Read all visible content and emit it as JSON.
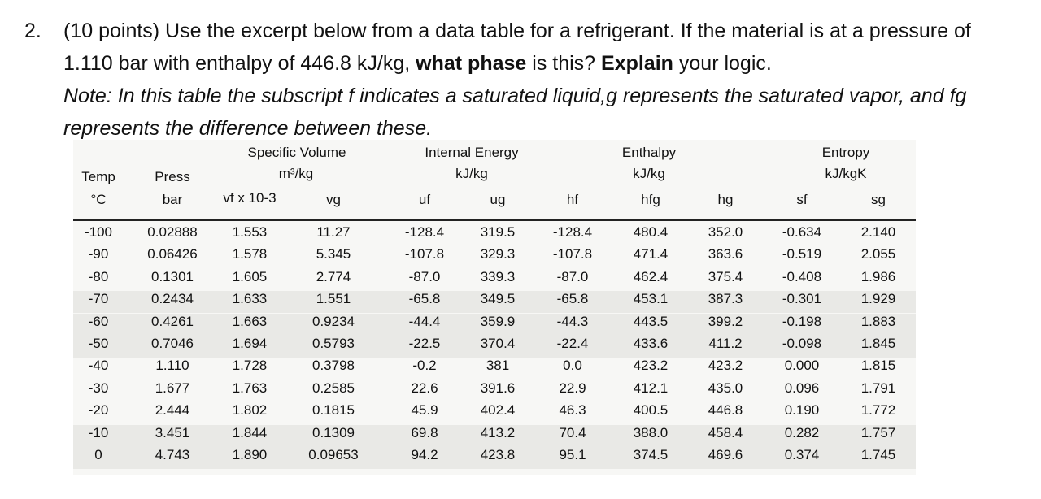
{
  "question": {
    "number": "2.",
    "points": "(10 points) Use the excerpt below from a data table for a refrigerant.  If the material is at a pressure of 1.110 bar with enthalpy of 446.8 kJ/kg, ",
    "bold1": "what phase",
    "mid": " is this? ",
    "bold2": "Explain",
    "end": " your logic.",
    "note_a": "Note: In this table the subscript ",
    "note_f": "f",
    "note_b": " indicates a saturated liquid,",
    "note_g": "g",
    "note_c": " represents the saturated vapor, and ",
    "note_fg": "fg",
    "note_d": " represents the difference between these."
  },
  "table": {
    "groups": {
      "specific_volume": "Specific Volume",
      "specific_volume_unit": "m³/kg",
      "internal_energy": "Internal Energy",
      "internal_energy_unit": "kJ/kg",
      "enthalpy": "Enthalpy",
      "enthalpy_unit": "kJ/kg",
      "entropy": "Entropy",
      "entropy_unit": "kJ/kgK"
    },
    "columns": {
      "temp": "Temp",
      "temp_unit": "°C",
      "press": "Press",
      "press_unit": "bar",
      "vf": "vf x 10-3",
      "vg": "vg",
      "uf": "uf",
      "ug": "ug",
      "hf": "hf",
      "hfg": "hfg",
      "hg": "hg",
      "sf": "sf",
      "sg": "sg"
    },
    "rows": [
      [
        "-100",
        "0.02888",
        "1.553",
        "11.27",
        "-128.4",
        "319.5",
        "-128.4",
        "480.4",
        "352.0",
        "-0.634",
        "2.140"
      ],
      [
        "-90",
        "0.06426",
        "1.578",
        "5.345",
        "-107.8",
        "329.3",
        "-107.8",
        "471.4",
        "363.6",
        "-0.519",
        "2.055"
      ],
      [
        "-80",
        "0.1301",
        "1.605",
        "2.774",
        "-87.0",
        "339.3",
        "-87.0",
        "462.4",
        "375.4",
        "-0.408",
        "1.986"
      ],
      [
        "-70",
        "0.2434",
        "1.633",
        "1.551",
        "-65.8",
        "349.5",
        "-65.8",
        "453.1",
        "387.3",
        "-0.301",
        "1.929"
      ],
      [
        "-60",
        "0.4261",
        "1.663",
        "0.9234",
        "-44.4",
        "359.9",
        "-44.3",
        "443.5",
        "399.2",
        "-0.198",
        "1.883"
      ],
      [
        "-50",
        "0.7046",
        "1.694",
        "0.5793",
        "-22.5",
        "370.4",
        "-22.4",
        "433.6",
        "411.2",
        "-0.098",
        "1.845"
      ],
      [
        "-40",
        "1.110",
        "1.728",
        "0.3798",
        "-0.2",
        "381",
        "0.0",
        "423.2",
        "423.2",
        "0.000",
        "1.815"
      ],
      [
        "-30",
        "1.677",
        "1.763",
        "0.2585",
        "22.6",
        "391.6",
        "22.9",
        "412.1",
        "435.0",
        "0.096",
        "1.791"
      ],
      [
        "-20",
        "2.444",
        "1.802",
        "0.1815",
        "45.9",
        "402.4",
        "46.3",
        "400.5",
        "446.8",
        "0.190",
        "1.772"
      ],
      [
        "-10",
        "3.451",
        "1.844",
        "0.1309",
        "69.8",
        "413.2",
        "70.4",
        "388.0",
        "458.4",
        "0.282",
        "1.757"
      ],
      [
        "0",
        "4.743",
        "1.890",
        "0.09653",
        "94.2",
        "423.8",
        "95.1",
        "374.5",
        "469.6",
        "0.374",
        "1.745"
      ]
    ]
  }
}
